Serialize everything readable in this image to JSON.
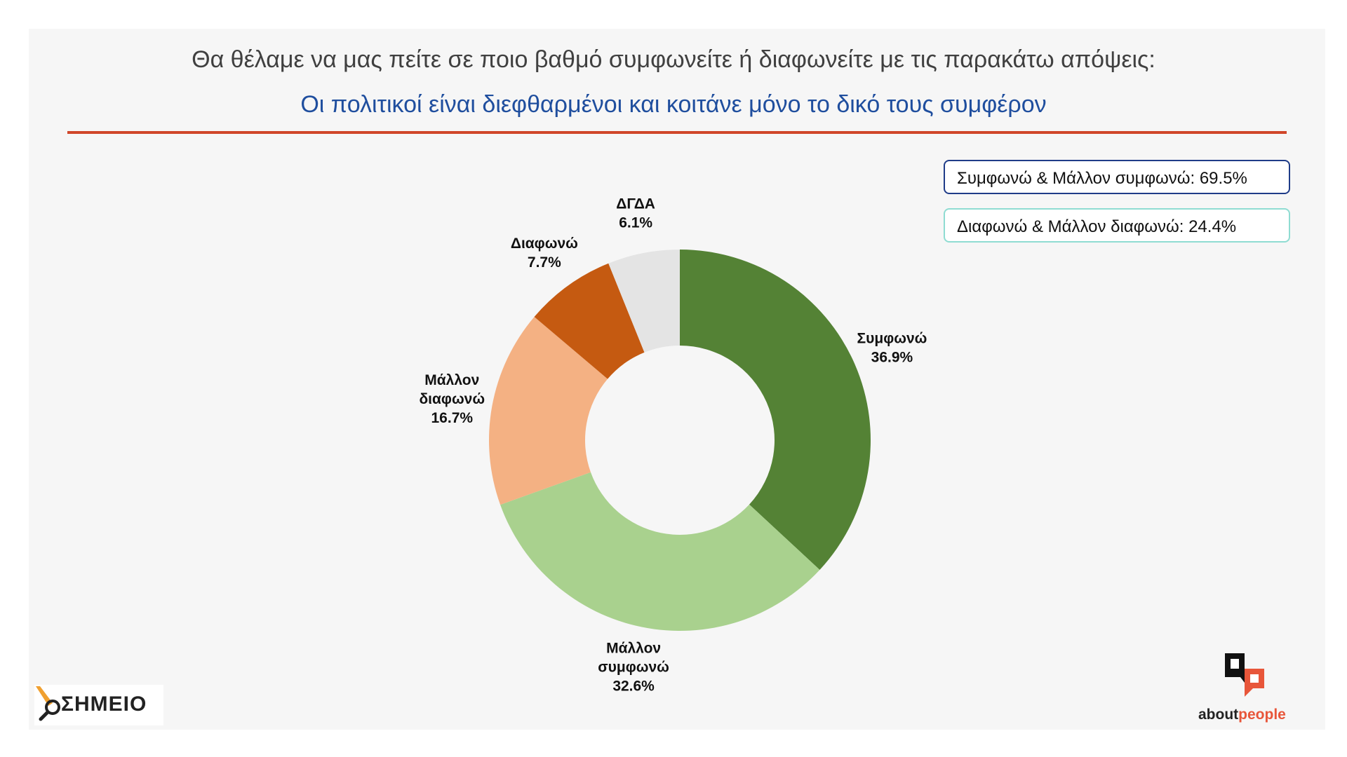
{
  "header": {
    "question": "Θα θέλαμε να μας πείτε σε ποιο βαθμό συμφωνείτε ή διαφωνείτε με τις παρακάτω απόψεις:",
    "statement": "Οι πολιτικοί είναι διεφθαρμένοι και κοιτάνε μόνο το δικό τους συμφέρον"
  },
  "summary": {
    "agree": "Συμφωνώ & Μάλλον συμφωνώ: 69.5%",
    "disagree": "Διαφωνώ & Μάλλον διαφωνώ: 24.4%"
  },
  "chart_data": {
    "type": "pie",
    "style": "donut",
    "slices": [
      {
        "label": [
          "Συμφωνώ"
        ],
        "value": 36.9,
        "value_label": "36.9%",
        "color": "#548235"
      },
      {
        "label": [
          "Μάλλον",
          "συμφωνώ"
        ],
        "value": 32.6,
        "value_label": "32.6%",
        "color": "#a9d18e"
      },
      {
        "label": [
          "Μάλλον",
          "διαφωνώ"
        ],
        "value": 16.7,
        "value_label": "16.7%",
        "color": "#f4b183"
      },
      {
        "label": [
          "Διαφωνώ"
        ],
        "value": 7.7,
        "value_label": "7.7%",
        "color": "#c55a11"
      },
      {
        "label": [
          "ΔΓΔΑ"
        ],
        "value": 6.1,
        "value_label": "6.1%",
        "color": "#e4e4e4"
      }
    ]
  },
  "logos": {
    "left_text": "ΣΗΜΕΙΟ",
    "right_text_a": "about",
    "right_text_b": "people"
  },
  "colors": {
    "accent_rule": "#d0462a",
    "statement_blue": "#1f4e9e",
    "logo_orange": "#f0a030",
    "logo_red": "#e8563a"
  }
}
